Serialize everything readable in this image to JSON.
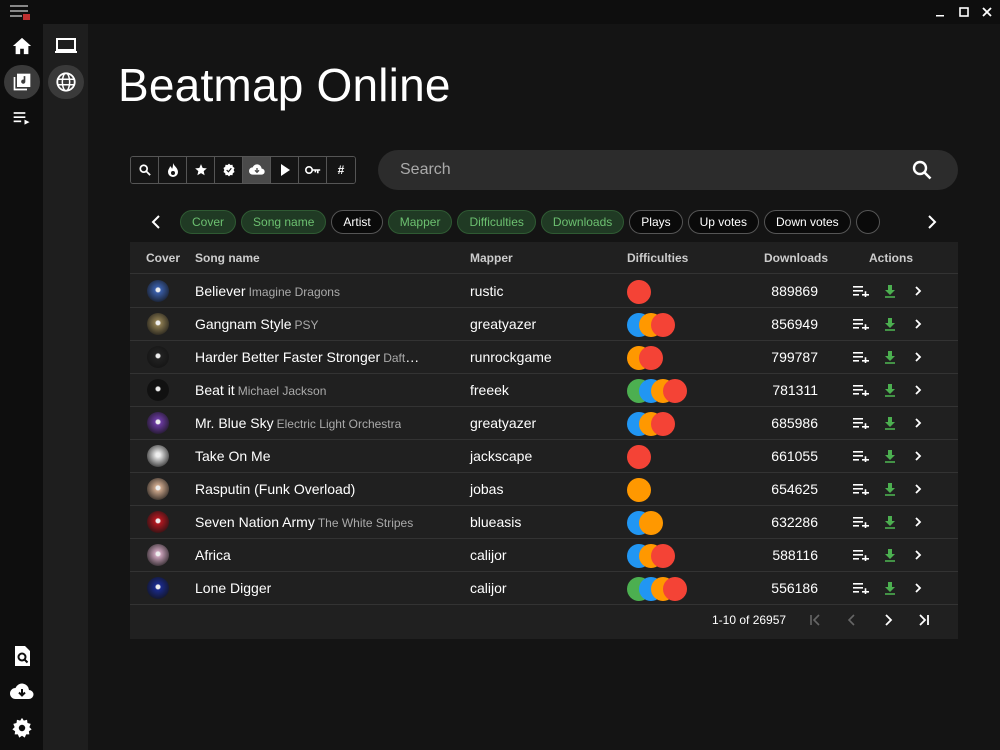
{
  "window": {
    "icons": {
      "app": "menu-logo-icon",
      "minimize": "minimize-icon",
      "maximize": "maximize-icon",
      "close": "close-icon"
    }
  },
  "rail": {
    "items": [
      {
        "name": "home-icon"
      },
      {
        "name": "library-icon",
        "active": true
      },
      {
        "name": "playlist-icon"
      }
    ],
    "bottom_items": [
      {
        "name": "search-file-icon"
      },
      {
        "name": "cloud-download-icon"
      },
      {
        "name": "settings-icon"
      }
    ]
  },
  "subrail": {
    "items": [
      {
        "name": "laptop-icon"
      },
      {
        "name": "globe-icon",
        "active": true
      }
    ]
  },
  "page_title": "Beatmap Online",
  "sortbar": {
    "buttons": [
      {
        "name": "search-icon"
      },
      {
        "name": "fire-icon"
      },
      {
        "name": "star-icon"
      },
      {
        "name": "badge-icon"
      },
      {
        "name": "cloud-download-icon",
        "active": true
      },
      {
        "name": "play-icon"
      },
      {
        "name": "key-icon"
      },
      {
        "name": "hash-icon",
        "label": "#"
      }
    ]
  },
  "search": {
    "placeholder": "Search",
    "value": ""
  },
  "chips": [
    {
      "label": "Cover",
      "on": true
    },
    {
      "label": "Song name",
      "on": true
    },
    {
      "label": "Artist",
      "on": false
    },
    {
      "label": "Mapper",
      "on": true
    },
    {
      "label": "Difficulties",
      "on": true
    },
    {
      "label": "Downloads",
      "on": true
    },
    {
      "label": "Plays",
      "on": false
    },
    {
      "label": "Up votes",
      "on": false
    },
    {
      "label": "Down votes",
      "on": false
    },
    {
      "label": "",
      "on": false
    }
  ],
  "colors": {
    "easy": "#4caf50",
    "normal": "#2196f3",
    "hard": "#ff9800",
    "expert": "#f44336",
    "accent_green": "#4caf50"
  },
  "table": {
    "headers": {
      "cover": "Cover",
      "song": "Song name",
      "mapper": "Mapper",
      "difficulties": "Difficulties",
      "downloads": "Downloads",
      "actions": "Actions"
    },
    "rows": [
      {
        "title": "Believer",
        "artist": "Imagine Dragons",
        "mapper": "rustic",
        "diffs": [
          "expert"
        ],
        "downloads": "889869",
        "cover": "#3a5ea8"
      },
      {
        "title": "Gangnam Style",
        "artist": "PSY",
        "mapper": "greatyazer",
        "diffs": [
          "normal",
          "hard",
          "expert"
        ],
        "downloads": "856949",
        "cover": "#8a7a50"
      },
      {
        "title": "Harder Better Faster Stronger",
        "artist": "Daft Punk",
        "mapper": "runrockgame",
        "diffs": [
          "hard",
          "expert"
        ],
        "downloads": "799787",
        "cover": "#222222"
      },
      {
        "title": "Beat it",
        "artist": "Michael Jackson",
        "mapper": "freeek",
        "diffs": [
          "easy",
          "normal",
          "hard",
          "expert"
        ],
        "downloads": "781311",
        "cover": "#111111"
      },
      {
        "title": "Mr. Blue Sky",
        "artist": "Electric Light Orchestra",
        "mapper": "greatyazer",
        "diffs": [
          "normal",
          "hard",
          "expert"
        ],
        "downloads": "685986",
        "cover": "#6a3aa0"
      },
      {
        "title": "Take On Me",
        "artist": "",
        "mapper": "jackscape",
        "diffs": [
          "expert"
        ],
        "downloads": "661055",
        "cover": "#dddddd"
      },
      {
        "title": "Rasputin (Funk Overload)",
        "artist": "",
        "mapper": "jobas",
        "diffs": [
          "hard"
        ],
        "downloads": "654625",
        "cover": "#caa58a"
      },
      {
        "title": "Seven Nation Army",
        "artist": "The White Stripes",
        "mapper": "blueasis",
        "diffs": [
          "normal",
          "hard"
        ],
        "downloads": "632286",
        "cover": "#b01820"
      },
      {
        "title": "Africa",
        "artist": "",
        "mapper": "calijor",
        "diffs": [
          "normal",
          "hard",
          "expert"
        ],
        "downloads": "588116",
        "cover": "#c8a0b8"
      },
      {
        "title": "Lone Digger",
        "artist": "",
        "mapper": "calijor",
        "diffs": [
          "easy",
          "normal",
          "hard",
          "expert"
        ],
        "downloads": "556186",
        "cover": "#1a2a8a"
      }
    ]
  },
  "pagination": {
    "range": "1-10 of 26957"
  }
}
